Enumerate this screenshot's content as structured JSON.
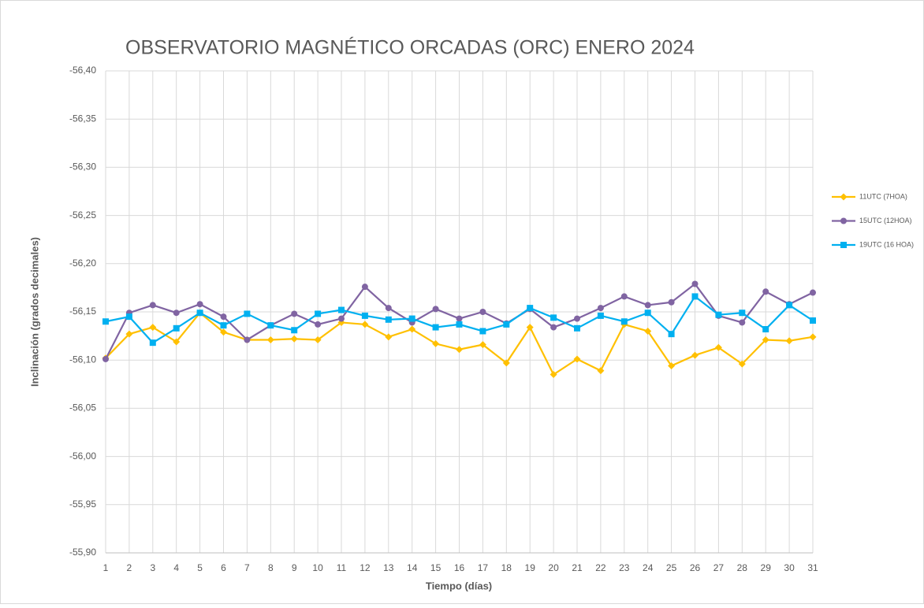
{
  "chart_data": {
    "type": "line",
    "title": "OBSERVATORIO MAGNÉTICO ORCADAS (ORC) ENERO 2024",
    "x_label": "Tiempo (días)",
    "y_label": "Inclinación (grados decimales)",
    "x": [
      1,
      2,
      3,
      4,
      5,
      6,
      7,
      8,
      9,
      10,
      11,
      12,
      13,
      14,
      15,
      16,
      17,
      18,
      19,
      20,
      21,
      22,
      23,
      24,
      25,
      26,
      27,
      28,
      29,
      30,
      31
    ],
    "xlim": [
      1,
      31
    ],
    "xticks": [
      1,
      2,
      3,
      4,
      5,
      6,
      7,
      8,
      9,
      10,
      11,
      12,
      13,
      14,
      15,
      16,
      17,
      18,
      19,
      20,
      21,
      22,
      23,
      24,
      25,
      26,
      27,
      28,
      29,
      30,
      31
    ],
    "ylim": [
      -55.9,
      -56.4
    ],
    "yticks": [
      {
        "value": -55.9,
        "label": "-55,90"
      },
      {
        "value": -55.95,
        "label": "-55,95"
      },
      {
        "value": -56.0,
        "label": "-56,00"
      },
      {
        "value": -56.05,
        "label": "-56,05"
      },
      {
        "value": -56.1,
        "label": "-56,10"
      },
      {
        "value": -56.15,
        "label": "-56,15"
      },
      {
        "value": -56.2,
        "label": "-56,20"
      },
      {
        "value": -56.25,
        "label": "-56,25"
      },
      {
        "value": -56.3,
        "label": "-56,30"
      },
      {
        "value": -56.35,
        "label": "-56,35"
      },
      {
        "value": -56.4,
        "label": "-56,40"
      }
    ],
    "grid": true,
    "legend": "right",
    "series": [
      {
        "name": "11UTC (7HOA)",
        "color": "#FFC000",
        "marker": "diamond",
        "values": [
          -56.102,
          -56.127,
          -56.134,
          -56.119,
          -56.149,
          -56.129,
          -56.121,
          -56.121,
          -56.122,
          -56.121,
          -56.139,
          -56.137,
          -56.124,
          -56.132,
          -56.117,
          -56.111,
          -56.116,
          -56.097,
          -56.134,
          -56.085,
          -56.101,
          -56.089,
          -56.137,
          -56.13,
          -56.094,
          -56.105,
          -56.113,
          -56.096,
          -56.121,
          -56.12,
          -56.124
        ]
      },
      {
        "name": "15UTC (12HOA)",
        "color": "#8064A2",
        "marker": "circle",
        "values": [
          -56.101,
          -56.149,
          -56.157,
          -56.149,
          -56.158,
          -56.145,
          -56.121,
          -56.136,
          -56.148,
          -56.137,
          -56.143,
          -56.176,
          -56.154,
          -56.139,
          -56.153,
          -56.143,
          -56.15,
          -56.138,
          -56.153,
          -56.134,
          -56.143,
          -56.154,
          -56.166,
          -56.157,
          -56.16,
          -56.179,
          -56.146,
          -56.139,
          -56.171,
          -56.158,
          -56.17
        ]
      },
      {
        "name": "19UTC (16 HOA)",
        "color": "#00B0F0",
        "marker": "square",
        "values": [
          -56.14,
          -56.145,
          -56.118,
          -56.133,
          -56.149,
          -56.136,
          -56.148,
          -56.136,
          -56.131,
          -56.148,
          -56.152,
          -56.146,
          -56.142,
          -56.143,
          -56.134,
          -56.137,
          -56.13,
          -56.137,
          -56.154,
          -56.144,
          -56.133,
          -56.146,
          -56.14,
          -56.149,
          -56.127,
          -56.166,
          -56.147,
          -56.149,
          -56.132,
          -56.157,
          -56.141
        ]
      }
    ]
  }
}
